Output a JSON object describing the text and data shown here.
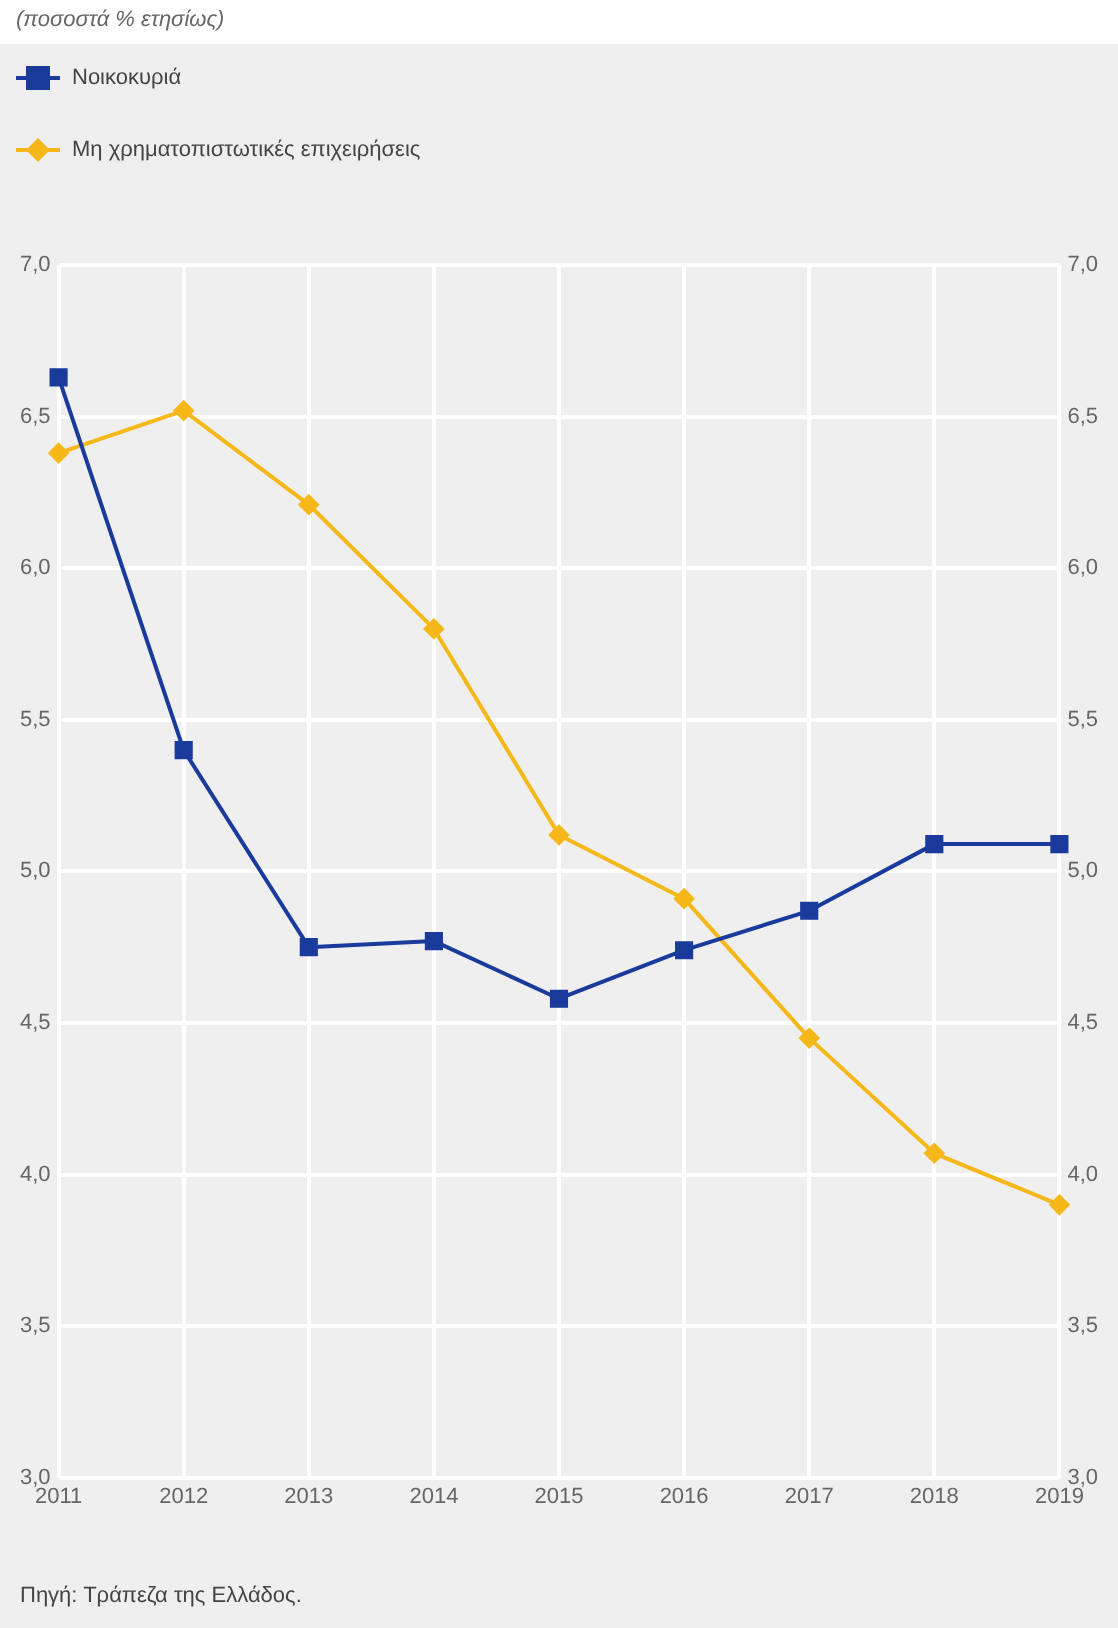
{
  "chart_data": {
    "type": "line",
    "title": "(ποσοστά % ετησίως)",
    "categories": [
      "2011",
      "2012",
      "2013",
      "2014",
      "2015",
      "2016",
      "2017",
      "2018",
      "2019"
    ],
    "series": [
      {
        "name": "Νοικοκυριά",
        "color": "#1a3a9c",
        "marker": "square",
        "values": [
          6.63,
          5.4,
          4.75,
          4.77,
          4.58,
          4.74,
          4.87,
          5.09,
          5.09
        ]
      },
      {
        "name": "Μη χρηματοπιστωτικές επιχειρήσεις",
        "color": "#f5b818",
        "marker": "diamond",
        "values": [
          6.38,
          6.52,
          6.21,
          5.8,
          5.12,
          4.91,
          4.45,
          4.07,
          3.9
        ]
      }
    ],
    "ylim": [
      3,
      7
    ],
    "yticks": [
      {
        "value": 3,
        "label": "3,0"
      },
      {
        "value": 3.5,
        "label": "3,5"
      },
      {
        "value": 4,
        "label": "4,0"
      },
      {
        "value": 4.5,
        "label": "4,5"
      },
      {
        "value": 5,
        "label": "5,0"
      },
      {
        "value": 5.5,
        "label": "5,5"
      },
      {
        "value": 6,
        "label": "6,0"
      },
      {
        "value": 6.5,
        "label": "6,5"
      },
      {
        "value": 7,
        "label": "7,0"
      }
    ],
    "y2lim": [
      3,
      7
    ],
    "y2ticks": [
      {
        "value": 3,
        "label": "3,0"
      },
      {
        "value": 3.5,
        "label": "3,5"
      },
      {
        "value": 4,
        "label": "4,0"
      },
      {
        "value": 4.5,
        "label": "4,5"
      },
      {
        "value": 5,
        "label": "5,0"
      },
      {
        "value": 5.5,
        "label": "5,5"
      },
      {
        "value": 6,
        "label": "6,0"
      },
      {
        "value": 6.5,
        "label": "6,5"
      },
      {
        "value": 7,
        "label": "7,0"
      }
    ],
    "grid": true,
    "legend": "top left",
    "line_style": "solid",
    "annotations": [
      "Πηγή: Τράπεζα της Ελλάδος."
    ]
  }
}
